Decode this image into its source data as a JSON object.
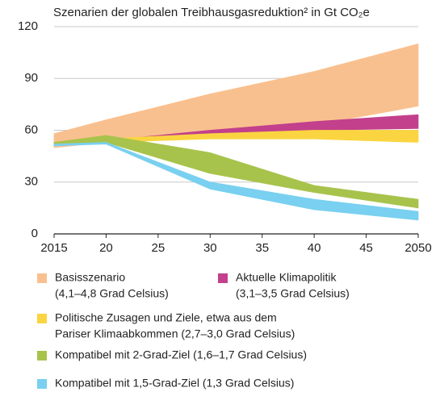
{
  "chart_data": {
    "type": "range-area",
    "title": "Szenarien der globalen Treibhausgasreduktion² in Gt CO₂e",
    "x": [
      2015,
      2020,
      2030,
      2040,
      2050
    ],
    "xlim": [
      2015,
      2050
    ],
    "xticks": [
      {
        "value": 2015,
        "label": "2015"
      },
      {
        "value": 2020,
        "label": "20"
      },
      {
        "value": 2025,
        "label": "25"
      },
      {
        "value": 2030,
        "label": "30"
      },
      {
        "value": 2035,
        "label": "35"
      },
      {
        "value": 2040,
        "label": "40"
      },
      {
        "value": 2045,
        "label": "45"
      },
      {
        "value": 2050,
        "label": "2050"
      }
    ],
    "ylim": [
      0,
      120
    ],
    "yticks": [
      0,
      30,
      60,
      90,
      120
    ],
    "grid": true,
    "series": [
      {
        "name": [
          "Basisszenario",
          "(4,1–4,8 Grad Celsius)"
        ],
        "color": "#f9c08f",
        "high": [
          58,
          66,
          81,
          94,
          110
        ],
        "low": [
          50,
          53,
          59,
          63,
          74
        ]
      },
      {
        "name": [
          "Aktuelle Klimapolitik",
          "(3,1–3,5 Grad Celsius)"
        ],
        "color": "#c2408c",
        "high": [
          53,
          54,
          60,
          65,
          69
        ],
        "low": [
          52,
          53,
          57,
          60,
          61
        ]
      },
      {
        "name": [
          "Politische Zusagen und Ziele, etwa aus dem",
          "Pariser Klimaabkommen (2,7–3,0 Grad Celsius)"
        ],
        "color": "#fad541",
        "high": [
          53,
          55,
          58,
          60,
          60
        ],
        "low": [
          51,
          53,
          55,
          55,
          53
        ]
      },
      {
        "name": [
          "Kompatibel mit 2-Grad-Ziel (1,6–1,7 Grad Celsius)"
        ],
        "color": "#a8c34c",
        "high": [
          53,
          57,
          47,
          28,
          20
        ],
        "low": [
          51,
          53,
          35,
          24,
          15
        ]
      },
      {
        "name": [
          "Kompatibel mit 1,5-Grad-Ziel (1,3 Grad Celsius)"
        ],
        "color": "#79d0f0",
        "high": [
          52,
          53,
          30,
          20,
          13
        ],
        "low": [
          51,
          52,
          26,
          14,
          8
        ]
      }
    ]
  }
}
